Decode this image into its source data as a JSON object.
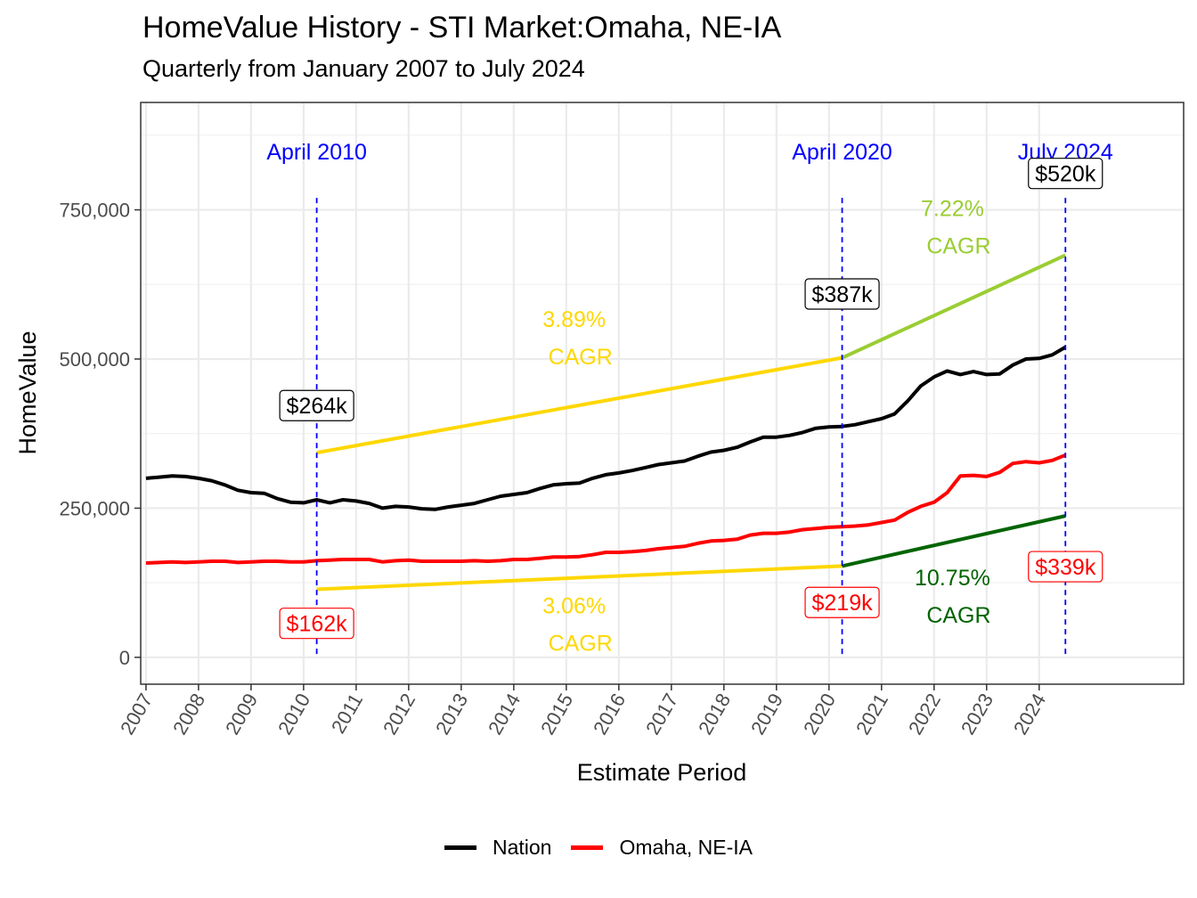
{
  "chart_data": {
    "type": "line",
    "title": "HomeValue History - STI Market:Omaha, NE-IA",
    "subtitle": "Quarterly from January 2007 to July 2024",
    "xlabel": "Estimate Period",
    "ylabel": "HomeValue",
    "ylim": [
      -45000,
      930000
    ],
    "y_ticks": [
      0,
      250000,
      500000,
      750000
    ],
    "y_tick_labels": [
      "0",
      "250,000",
      "500,000",
      "750,000"
    ],
    "x_ticks": [
      2007,
      2008,
      2009,
      2010,
      2011,
      2012,
      2013,
      2014,
      2015,
      2016,
      2017,
      2018,
      2019,
      2020,
      2021,
      2022,
      2023,
      2024
    ],
    "x_tick_labels": [
      "2007",
      "2008",
      "2009",
      "2010",
      "2011",
      "2012",
      "2013",
      "2014",
      "2015",
      "2016",
      "2017",
      "2018",
      "2019",
      "2020",
      "2021",
      "2022",
      "2023",
      "2024"
    ],
    "grid": true,
    "legend_position": "bottom",
    "series": [
      {
        "name": "Nation",
        "color": "#000000",
        "points": [
          [
            2007.0,
            300000
          ],
          [
            2007.25,
            302000
          ],
          [
            2007.5,
            304000
          ],
          [
            2007.75,
            303000
          ],
          [
            2008.0,
            300000
          ],
          [
            2008.25,
            296000
          ],
          [
            2008.5,
            289000
          ],
          [
            2008.75,
            280000
          ],
          [
            2009.0,
            276000
          ],
          [
            2009.25,
            275000
          ],
          [
            2009.5,
            266000
          ],
          [
            2009.75,
            260000
          ],
          [
            2010.0,
            259000
          ],
          [
            2010.25,
            264000
          ],
          [
            2010.5,
            259000
          ],
          [
            2010.75,
            264000
          ],
          [
            2011.0,
            262000
          ],
          [
            2011.25,
            258000
          ],
          [
            2011.5,
            250000
          ],
          [
            2011.75,
            253000
          ],
          [
            2012.0,
            252000
          ],
          [
            2012.25,
            249000
          ],
          [
            2012.5,
            248000
          ],
          [
            2012.75,
            252000
          ],
          [
            2013.0,
            255000
          ],
          [
            2013.25,
            258000
          ],
          [
            2013.5,
            264000
          ],
          [
            2013.75,
            270000
          ],
          [
            2014.0,
            273000
          ],
          [
            2014.25,
            276000
          ],
          [
            2014.5,
            283000
          ],
          [
            2014.75,
            289000
          ],
          [
            2015.0,
            291000
          ],
          [
            2015.25,
            292000
          ],
          [
            2015.5,
            300000
          ],
          [
            2015.75,
            306000
          ],
          [
            2016.0,
            309000
          ],
          [
            2016.25,
            313000
          ],
          [
            2016.5,
            318000
          ],
          [
            2016.75,
            323000
          ],
          [
            2017.0,
            326000
          ],
          [
            2017.25,
            329000
          ],
          [
            2017.5,
            337000
          ],
          [
            2017.75,
            344000
          ],
          [
            2018.0,
            347000
          ],
          [
            2018.25,
            352000
          ],
          [
            2018.5,
            361000
          ],
          [
            2018.75,
            369000
          ],
          [
            2019.0,
            369000
          ],
          [
            2019.25,
            372000
          ],
          [
            2019.5,
            377000
          ],
          [
            2019.75,
            384000
          ],
          [
            2020.0,
            386000
          ],
          [
            2020.25,
            387000
          ],
          [
            2020.5,
            390000
          ],
          [
            2020.75,
            395000
          ],
          [
            2021.0,
            400000
          ],
          [
            2021.25,
            408000
          ],
          [
            2021.5,
            430000
          ],
          [
            2021.75,
            455000
          ],
          [
            2022.0,
            470000
          ],
          [
            2022.25,
            480000
          ],
          [
            2022.5,
            474000
          ],
          [
            2022.75,
            479000
          ],
          [
            2023.0,
            474000
          ],
          [
            2023.25,
            475000
          ],
          [
            2023.5,
            490000
          ],
          [
            2023.75,
            500000
          ],
          [
            2024.0,
            501000
          ],
          [
            2024.25,
            507000
          ],
          [
            2024.5,
            520000
          ]
        ]
      },
      {
        "name": "Omaha, NE-IA",
        "color": "#ff0000",
        "points": [
          [
            2007.0,
            158000
          ],
          [
            2007.25,
            159000
          ],
          [
            2007.5,
            160000
          ],
          [
            2007.75,
            159000
          ],
          [
            2008.0,
            160000
          ],
          [
            2008.25,
            161000
          ],
          [
            2008.5,
            161000
          ],
          [
            2008.75,
            159000
          ],
          [
            2009.0,
            160000
          ],
          [
            2009.25,
            161000
          ],
          [
            2009.5,
            161000
          ],
          [
            2009.75,
            160000
          ],
          [
            2010.0,
            160000
          ],
          [
            2010.25,
            162000
          ],
          [
            2010.5,
            163000
          ],
          [
            2010.75,
            164000
          ],
          [
            2011.0,
            164000
          ],
          [
            2011.25,
            164000
          ],
          [
            2011.5,
            160000
          ],
          [
            2011.75,
            162000
          ],
          [
            2012.0,
            163000
          ],
          [
            2012.25,
            161000
          ],
          [
            2012.5,
            161000
          ],
          [
            2012.75,
            161000
          ],
          [
            2013.0,
            161000
          ],
          [
            2013.25,
            162000
          ],
          [
            2013.5,
            161000
          ],
          [
            2013.75,
            162000
          ],
          [
            2014.0,
            164000
          ],
          [
            2014.25,
            164000
          ],
          [
            2014.5,
            166000
          ],
          [
            2014.75,
            168000
          ],
          [
            2015.0,
            168000
          ],
          [
            2015.25,
            169000
          ],
          [
            2015.5,
            172000
          ],
          [
            2015.75,
            176000
          ],
          [
            2016.0,
            176000
          ],
          [
            2016.25,
            177000
          ],
          [
            2016.5,
            179000
          ],
          [
            2016.75,
            182000
          ],
          [
            2017.0,
            184000
          ],
          [
            2017.25,
            186000
          ],
          [
            2017.5,
            191000
          ],
          [
            2017.75,
            195000
          ],
          [
            2018.0,
            196000
          ],
          [
            2018.25,
            198000
          ],
          [
            2018.5,
            205000
          ],
          [
            2018.75,
            208000
          ],
          [
            2019.0,
            208000
          ],
          [
            2019.25,
            210000
          ],
          [
            2019.5,
            214000
          ],
          [
            2019.75,
            216000
          ],
          [
            2020.0,
            218000
          ],
          [
            2020.25,
            219000
          ],
          [
            2020.5,
            220000
          ],
          [
            2020.75,
            222000
          ],
          [
            2021.0,
            226000
          ],
          [
            2021.25,
            230000
          ],
          [
            2021.5,
            243000
          ],
          [
            2021.75,
            253000
          ],
          [
            2022.0,
            260000
          ],
          [
            2022.25,
            276000
          ],
          [
            2022.5,
            304000
          ],
          [
            2022.75,
            305000
          ],
          [
            2023.0,
            303000
          ],
          [
            2023.25,
            310000
          ],
          [
            2023.5,
            325000
          ],
          [
            2023.75,
            328000
          ],
          [
            2024.0,
            326000
          ],
          [
            2024.25,
            330000
          ],
          [
            2024.5,
            339000
          ]
        ]
      }
    ],
    "trend_lines": [
      {
        "color": "#FFD700",
        "points": [
          [
            2010.25,
            343000
          ],
          [
            2020.25,
            502000
          ]
        ]
      },
      {
        "color": "#9ACD32",
        "points": [
          [
            2020.25,
            502000
          ],
          [
            2024.5,
            674000
          ]
        ]
      },
      {
        "color": "#FFD700",
        "points": [
          [
            2010.25,
            114000
          ],
          [
            2020.25,
            153000
          ]
        ]
      },
      {
        "color": "#006400",
        "points": [
          [
            2020.25,
            153000
          ],
          [
            2024.5,
            237000
          ]
        ]
      }
    ],
    "vlines": [
      {
        "x": 2010.25,
        "label": "April 2010",
        "color": "#0000ff"
      },
      {
        "x": 2020.25,
        "label": "April 2020",
        "color": "#0000ff"
      },
      {
        "x": 2024.5,
        "label": "July 2024",
        "color": "#0000ff"
      }
    ],
    "value_labels": [
      {
        "x": 2010.25,
        "y": 422000,
        "text": "$264k",
        "color": "#000000"
      },
      {
        "x": 2020.25,
        "y": 609000,
        "text": "$387k",
        "color": "#000000"
      },
      {
        "x": 2024.5,
        "y": 811000,
        "text": "$520k",
        "color": "#000000"
      },
      {
        "x": 2010.25,
        "y": 57000,
        "text": "$162k",
        "color": "#ff0000"
      },
      {
        "x": 2020.25,
        "y": 92000,
        "text": "$219k",
        "color": "#ff0000"
      },
      {
        "x": 2024.5,
        "y": 152000,
        "text": "$339k",
        "color": "#ff0000"
      }
    ],
    "cagr_labels": [
      {
        "x": 2015.15,
        "y": 567000,
        "line1": "3.89%",
        "line2": "CAGR",
        "color": "#FFD700"
      },
      {
        "x": 2022.35,
        "y": 753000,
        "line1": "7.22%",
        "line2": "CAGR",
        "color": "#9ACD32"
      },
      {
        "x": 2015.15,
        "y": 87000,
        "line1": "3.06%",
        "line2": "CAGR",
        "color": "#FFD700"
      },
      {
        "x": 2022.35,
        "y": 134000,
        "line1": "10.75%",
        "line2": "CAGR",
        "color": "#006400"
      }
    ]
  }
}
